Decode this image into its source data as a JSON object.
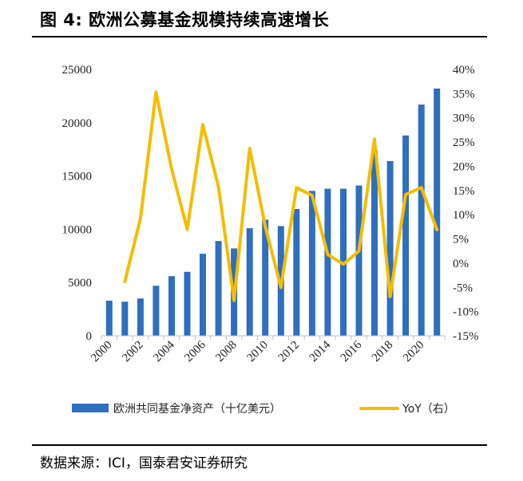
{
  "header": {
    "title": "图 4: 欧洲公募基金规模持续高速增长"
  },
  "footer": {
    "source": "数据来源：ICI，国泰君安证券研究"
  },
  "chart_data": {
    "type": "bar",
    "title": "图 4: 欧洲公募基金规模持续高速增长",
    "x": [
      2000,
      2001,
      2002,
      2003,
      2004,
      2005,
      2006,
      2007,
      2008,
      2009,
      2010,
      2011,
      2012,
      2013,
      2014,
      2015,
      2016,
      2017,
      2018,
      2019,
      2020,
      2021
    ],
    "x_tick_labels": [
      "2000",
      "2002",
      "2004",
      "2006",
      "2008",
      "2010",
      "2012",
      "2014",
      "2016",
      "2018",
      "2020"
    ],
    "series": [
      {
        "name": "欧洲共同基金净资产（十亿美元）",
        "type": "bar",
        "axis": "left",
        "color": "#2e6fbf",
        "values": [
          3300,
          3200,
          3500,
          4700,
          5600,
          6000,
          7700,
          8900,
          8200,
          10100,
          10900,
          10300,
          11900,
          13600,
          13800,
          13800,
          14100,
          17400,
          16400,
          18800,
          21700,
          23200
        ]
      },
      {
        "name": "YoY（右）",
        "type": "line",
        "axis": "right",
        "color": "#f5bd00",
        "values": [
          null,
          -3.8,
          9.2,
          35.3,
          19.4,
          7.0,
          28.6,
          15.8,
          -7.7,
          23.7,
          7.6,
          -5.0,
          15.6,
          14.0,
          1.8,
          -0.2,
          2.5,
          25.6,
          -6.9,
          14.2,
          15.6,
          6.9
        ]
      }
    ],
    "y_left": {
      "ylim": [
        0,
        25000
      ],
      "ticks": [
        "0",
        "5000",
        "10000",
        "15000",
        "20000",
        "25000"
      ]
    },
    "y_right": {
      "ylim": [
        -15,
        40
      ],
      "ticks": [
        "-15%",
        "-10%",
        "-5%",
        "0%",
        "5%",
        "10%",
        "15%",
        "20%",
        "25%",
        "30%",
        "35%",
        "40%"
      ]
    },
    "legend": {
      "placement": "bottom",
      "items": [
        "欧洲共同基金净资产（十亿美元）",
        "YoY（右）"
      ]
    },
    "grid": false
  }
}
